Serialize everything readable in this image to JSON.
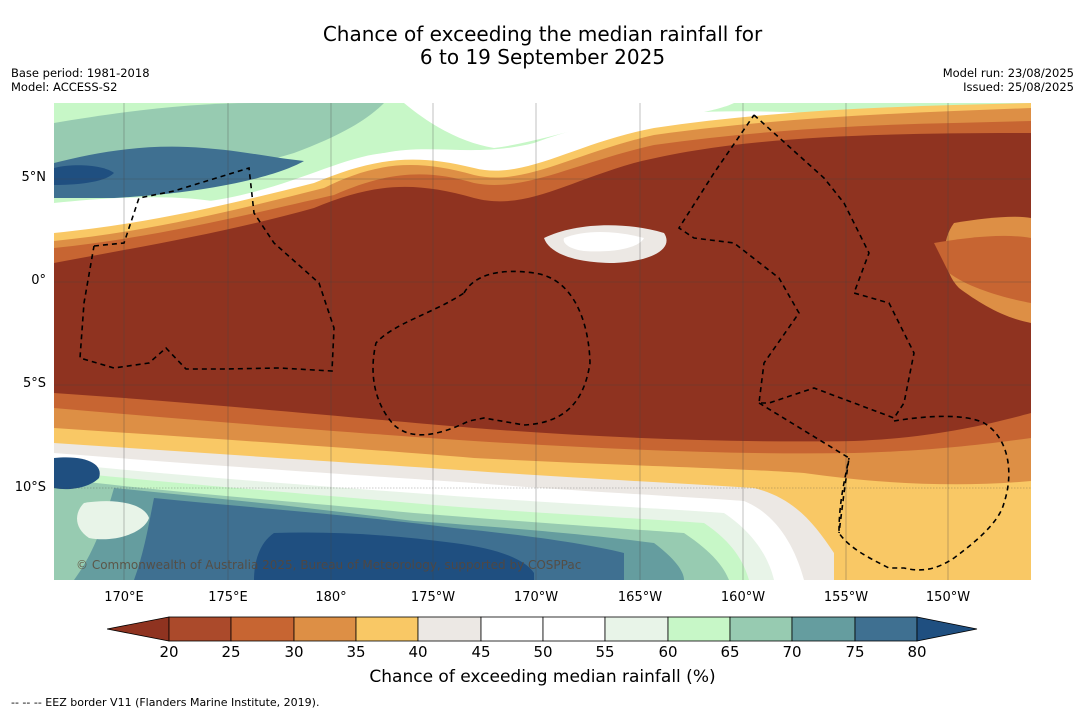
{
  "title": {
    "line1": "Chance of exceeding the median rainfall for",
    "line2": "6 to 19 September 2025"
  },
  "meta_left": {
    "base_period": "Base period: 1981-2018",
    "model": "Model: ACCESS-S2"
  },
  "meta_right": {
    "model_run": "Model run: 23/08/2025",
    "issued": "Issued: 25/08/2025"
  },
  "map": {
    "lat_labels": [
      "5°N",
      "0°",
      "5°S",
      "10°S"
    ],
    "lon_labels": [
      "170°E",
      "175°E",
      "180°",
      "175°W",
      "170°W",
      "165°W",
      "160°W",
      "155°W",
      "150°W"
    ],
    "copyright": "© Commonwealth of Australia 2025, Bureau of Meteorology, supported by COSPPac",
    "colors": {
      "below_20": "#8f3320",
      "p20_25": "#ab4a2b",
      "p25_30": "#c76532",
      "p30_35": "#dd8f45",
      "p35_40": "#f9c865",
      "p40_45": "#ece8e4",
      "p45_55": "#ffffff",
      "p55_60": "#e8f4e8",
      "p60_65": "#c7f7c7",
      "p65_70": "#97cbb1",
      "p70_75": "#659d9f",
      "p75_80": "#3f7091",
      "above_80": "#1f4f80"
    }
  },
  "colorbar": {
    "ticks": [
      "20",
      "25",
      "30",
      "35",
      "40",
      "45",
      "50",
      "55",
      "60",
      "65",
      "70",
      "75",
      "80"
    ],
    "label": "Chance of exceeding median rainfall (%)"
  },
  "legend_note": "--  --  -- EEZ border V11 (Flanders Marine Institute, 2019)."
}
